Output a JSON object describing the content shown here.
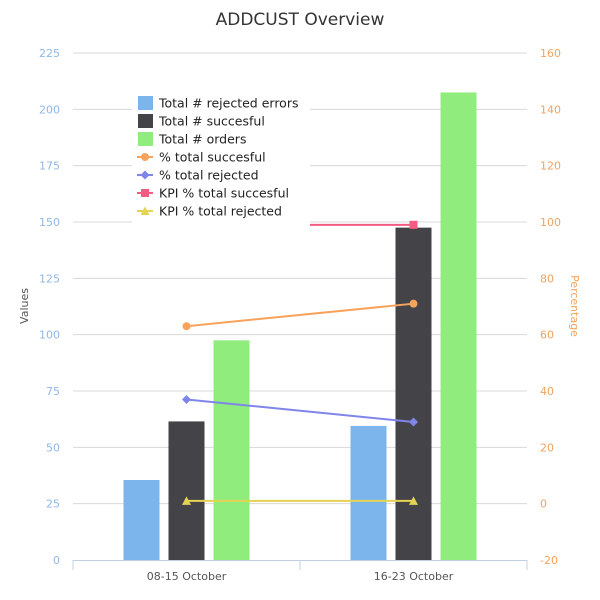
{
  "chart_data": {
    "type": "bar",
    "title": "ADDCUST Overview",
    "categories": [
      "08-15 October",
      "16-23 October"
    ],
    "ylabel": "Values",
    "y2label": "Percentage",
    "ylim": [
      0,
      225
    ],
    "y2lim": [
      -20,
      160
    ],
    "yticks": [
      "0",
      "25",
      "50",
      "75",
      "100",
      "125",
      "150",
      "175",
      "200",
      "225"
    ],
    "y2ticks": [
      "-20",
      "0",
      "20",
      "40",
      "60",
      "80",
      "100",
      "120",
      "140",
      "160"
    ],
    "grid": true,
    "legend_position": "top-left",
    "series": [
      {
        "name": "Total # rejected errors",
        "kind": "bar",
        "axis": "left",
        "color": "#7cb5ec",
        "values": [
          35.5,
          59.5
        ]
      },
      {
        "name": "Total # succesful",
        "kind": "bar",
        "axis": "left",
        "color": "#434348",
        "values": [
          61.5,
          147.5
        ]
      },
      {
        "name": "Total # orders",
        "kind": "bar",
        "axis": "left",
        "color": "#90ed7d",
        "values": [
          97.5,
          207.5
        ]
      },
      {
        "name": "% total succesful",
        "kind": "line",
        "axis": "right",
        "marker": "circle",
        "color": "#f7a35c",
        "values": [
          63,
          71
        ]
      },
      {
        "name": "% total rejected",
        "kind": "line",
        "axis": "right",
        "marker": "diamond",
        "color": "#8085e9",
        "values": [
          37,
          29
        ]
      },
      {
        "name": "KPI % total succesful",
        "kind": "line",
        "axis": "right",
        "marker": "square",
        "color": "#f15c80",
        "values": [
          99,
          99
        ]
      },
      {
        "name": "KPI % total rejected",
        "kind": "line",
        "axis": "right",
        "marker": "triangle",
        "color": "#e4d354",
        "values": [
          1,
          1
        ]
      }
    ]
  }
}
